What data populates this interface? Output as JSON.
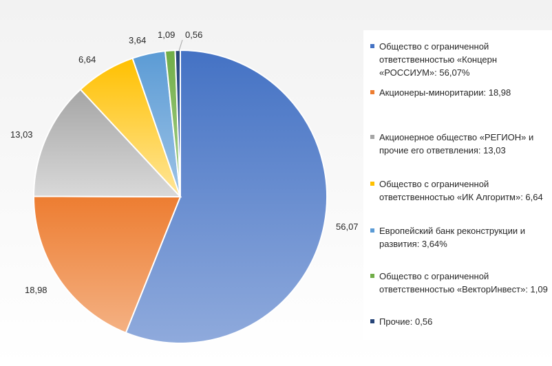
{
  "chart_data": {
    "type": "pie",
    "title": "",
    "slices": [
      {
        "label": "56,07",
        "value": 56.07,
        "color": "#4472c4",
        "color_light": "#8faadc",
        "legend": "Общество с ограниченной ответственностью «Концерн «РОССИУМ»: 56,07%"
      },
      {
        "label": "18,98",
        "value": 18.98,
        "color": "#ed7d31",
        "color_light": "#f4b183",
        "legend": "Акционеры-миноритарии: 18,98"
      },
      {
        "label": "13,03",
        "value": 13.03,
        "color": "#a5a5a5",
        "color_light": "#d9d9d9",
        "legend": "Акционерное общество «РЕГИОН» и прочие его ответвления: 13,03"
      },
      {
        "label": "6,64",
        "value": 6.64,
        "color": "#ffc000",
        "color_light": "#ffe699",
        "legend": "Общество с ограниченной ответственностью «ИК Алгоритм»: 6,64"
      },
      {
        "label": "3,64",
        "value": 3.64,
        "color": "#5b9bd5",
        "color_light": "#9dc3e6",
        "legend": "Европейский банк реконструкции и развития: 3,64%"
      },
      {
        "label": "1,09",
        "value": 1.09,
        "color": "#70ad47",
        "color_light": "#a9d18e",
        "legend": "Общество с ограниченной ответственностью «ВекторИнвест»: 1,09"
      },
      {
        "label": "0,56",
        "value": 0.56,
        "color": "#264478",
        "color_light": "#4a6fb5",
        "legend": "Прочие: 0,56"
      }
    ],
    "legend_position": "right"
  }
}
